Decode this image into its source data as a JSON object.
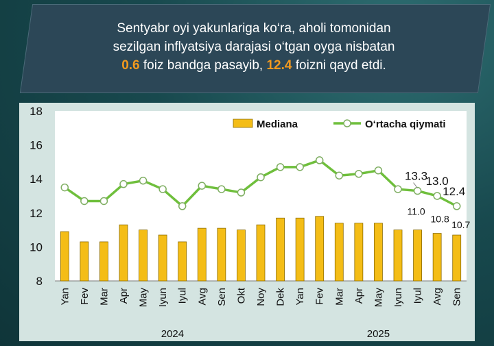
{
  "header": {
    "line1": "Sentyabr oyi yakunlariga ko‘ra, aholi tomonidan",
    "line2": "sezilgan inflyatsiya darajasi o‘tgan oyga nisbatan",
    "line3_value1": "0.6",
    "line3_mid": " foiz bandga pasayib, ",
    "line3_value2": "12.4",
    "line3_end": " foizni qayd etdi."
  },
  "colors": {
    "bar": "#f4bd16",
    "bar_stroke": "#8a6a00",
    "line": "#6fbf3c",
    "marker_fill": "#ffffff",
    "accent": "#f39a1e"
  },
  "chart_data": {
    "type": "bar+line",
    "categories": [
      "Yan",
      "Fev",
      "Mar",
      "Apr",
      "May",
      "Iyun",
      "Iyul",
      "Avg",
      "Sen",
      "Okt",
      "Noy",
      "Dek",
      "Yan",
      "Fev",
      "Mar",
      "Apr",
      "May",
      "Iyun",
      "Iyul",
      "Avg",
      "Sen"
    ],
    "year_labels": [
      {
        "label": "2024",
        "from": 0,
        "to": 11
      },
      {
        "label": "2025",
        "from": 12,
        "to": 20
      }
    ],
    "series": [
      {
        "name": "Mediana",
        "kind": "bar",
        "values": [
          10.9,
          10.3,
          10.3,
          11.3,
          11.0,
          10.7,
          10.3,
          11.1,
          11.1,
          11.0,
          11.3,
          11.7,
          11.7,
          11.8,
          11.4,
          11.4,
          11.4,
          11.0,
          11.0,
          10.8,
          10.7
        ]
      },
      {
        "name": "O‘rtacha qiymati",
        "kind": "line",
        "values": [
          13.5,
          12.7,
          12.7,
          13.7,
          13.9,
          13.4,
          12.4,
          13.6,
          13.4,
          13.2,
          14.1,
          14.7,
          14.7,
          15.1,
          14.2,
          14.3,
          14.5,
          13.4,
          13.3,
          13.0,
          12.4
        ]
      }
    ],
    "data_labels": [
      {
        "series": "Mediana",
        "index": 18,
        "text": "11.0"
      },
      {
        "series": "Mediana",
        "index": 19,
        "text": "10.8"
      },
      {
        "series": "Mediana",
        "index": 20,
        "text": "10.7"
      },
      {
        "series": "O‘rtacha qiymati",
        "index": 18,
        "text": "13.3"
      },
      {
        "series": "O‘rtacha qiymati",
        "index": 19,
        "text": "13.0"
      },
      {
        "series": "O‘rtacha qiymati",
        "index": 20,
        "text": "12.4"
      }
    ],
    "y_ticks": [
      "8",
      "10",
      "12",
      "14",
      "16",
      "18"
    ],
    "ylim": [
      8,
      18
    ],
    "grid": false,
    "legend_position": "top-right"
  }
}
